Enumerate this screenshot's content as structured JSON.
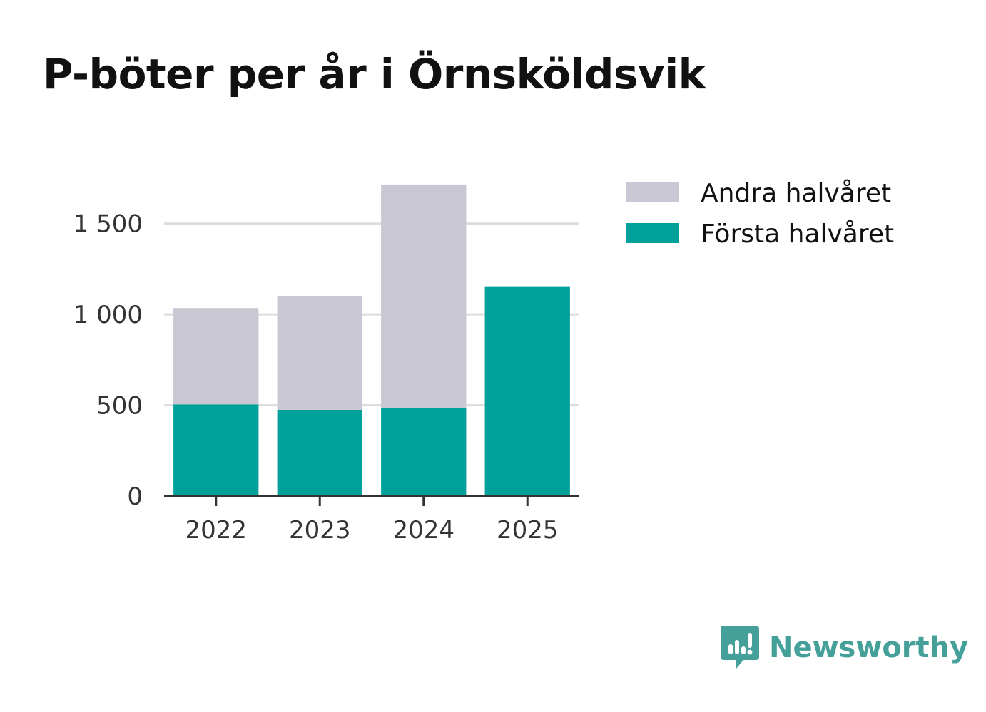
{
  "title": "P-böter per år i Örnsköldsvik",
  "brand": {
    "name": "Newsworthy",
    "icon": "newsworthy-logo-icon",
    "color": "#45a09a"
  },
  "colors": {
    "first_half": "#00a19a",
    "second_half": "#c8c7d3",
    "grid": "#dcdcdc",
    "axis": "#333333"
  },
  "chart_data": {
    "type": "bar",
    "stacked": true,
    "title": "P-böter per år i Örnsköldsvik",
    "categories": [
      "2022",
      "2023",
      "2024",
      "2025"
    ],
    "series": [
      {
        "name": "Första halvåret",
        "values": [
          505,
          475,
          485,
          1155
        ]
      },
      {
        "name": "Andra halvåret",
        "values": [
          530,
          625,
          1230,
          0
        ]
      }
    ],
    "legend_order": [
      "Andra halvåret",
      "Första halvåret"
    ],
    "legend_position": "top-right",
    "y_ticks": [
      0,
      500,
      1000,
      1500
    ],
    "y_tick_labels": [
      "0",
      "500",
      "1 000",
      "1 500"
    ],
    "ylim": [
      0,
      1750
    ],
    "grid": true,
    "xlabel": "",
    "ylabel": ""
  }
}
